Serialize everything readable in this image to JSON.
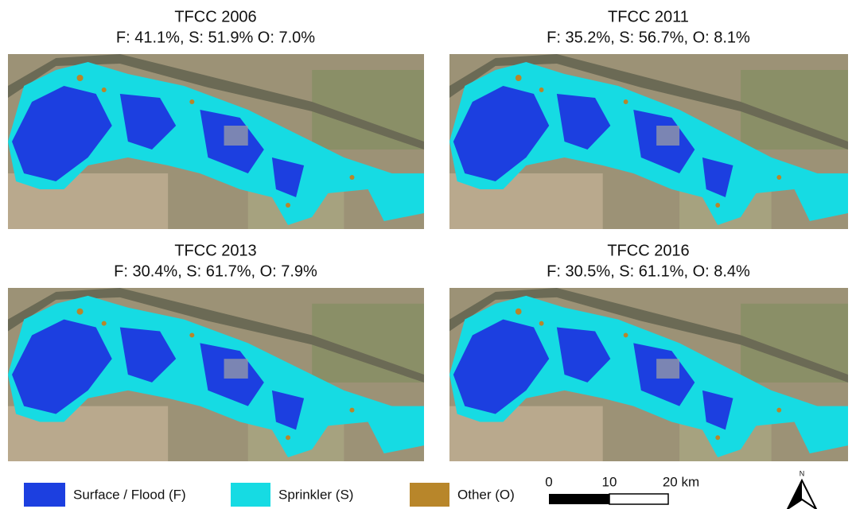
{
  "panels": [
    {
      "title": "TFCC 2006",
      "stats": "F: 41.1%, S: 51.9% O: 7.0%"
    },
    {
      "title": "TFCC 2011",
      "stats": "F: 35.2%, S: 56.7%, O: 8.1%"
    },
    {
      "title": "TFCC 2013",
      "stats": "F: 30.4%, S: 61.7%, O: 7.9%"
    },
    {
      "title": "TFCC 2016",
      "stats": "F: 30.5%, S: 61.1%, O: 8.4%"
    }
  ],
  "legend": [
    {
      "label": "Surface / Flood (F)",
      "color": "#1c3fe0"
    },
    {
      "label": "Sprinkler (S)",
      "color": "#16dbe3"
    },
    {
      "label": "Other (O)",
      "color": "#b8862a"
    }
  ],
  "scale_bar": {
    "labels": [
      "0",
      "10",
      "20 km"
    ]
  },
  "north_arrow": {
    "label": "N"
  }
}
